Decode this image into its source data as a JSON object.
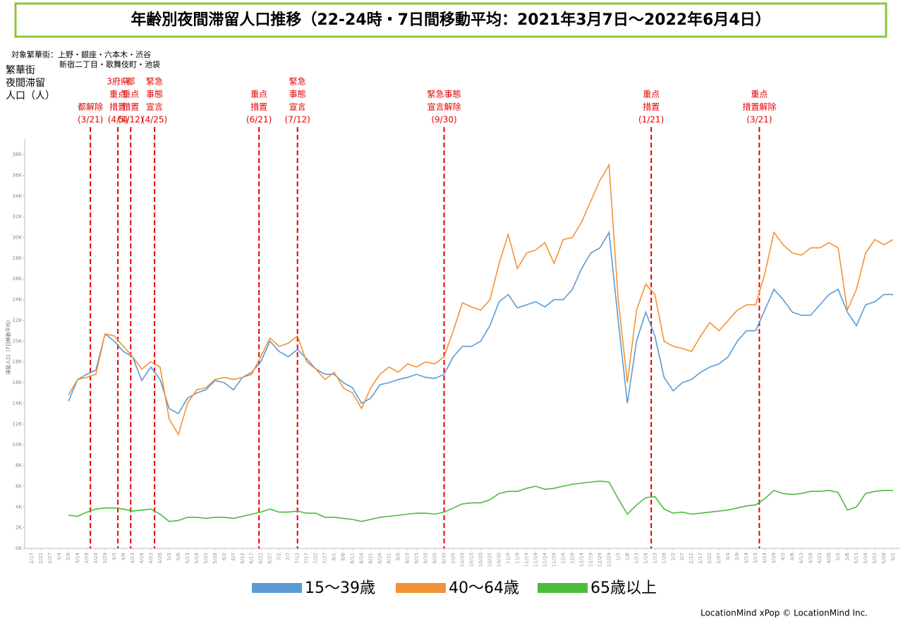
{
  "chart_data": {
    "type": "line",
    "title": "年齢別夜間滞留人口推移（22-24時・7日間移動平均：2021年3月7日～2022年6月4日）",
    "area_note": [
      "対象繁華街：上野・銀座・六本木・渋谷",
      "新宿二丁目・歌舞伎町・池袋"
    ],
    "y_unit_label": [
      "繁華街",
      "夜間滞留",
      "人口（人）"
    ],
    "ylabel": "滞留人口（7日移動平均）",
    "source": "LocationMind xPop © LocationMind Inc.",
    "categories": [
      "2/17",
      "2/22",
      "2/27",
      "3/4",
      "3/9",
      "3/14",
      "3/19",
      "3/24",
      "3/29",
      "4/3",
      "4/8",
      "4/13",
      "4/18",
      "4/23",
      "4/28",
      "5/3",
      "5/8",
      "5/13",
      "5/18",
      "5/23",
      "5/28",
      "6/2",
      "6/7",
      "6/12",
      "6/17",
      "6/22",
      "6/27",
      "7/2",
      "7/7",
      "7/12",
      "7/17",
      "7/22",
      "7/27",
      "8/1",
      "8/6",
      "8/11",
      "8/16",
      "8/21",
      "8/26",
      "8/31",
      "9/5",
      "9/10",
      "9/15",
      "9/20",
      "9/25",
      "9/30",
      "10/5",
      "10/10",
      "10/15",
      "10/20",
      "10/25",
      "10/30",
      "11/4",
      "11/9",
      "11/14",
      "11/19",
      "11/24",
      "11/29",
      "12/4",
      "12/9",
      "12/14",
      "12/19",
      "12/24",
      "12/29",
      "1/3",
      "1/8",
      "1/13",
      "1/18",
      "1/23",
      "1/28",
      "2/2",
      "2/7",
      "2/12",
      "2/17",
      "2/22",
      "2/27",
      "3/4",
      "3/9",
      "3/14",
      "3/19",
      "3/24",
      "3/29",
      "4/3",
      "4/8",
      "4/13",
      "4/18",
      "4/23",
      "4/28",
      "5/3",
      "5/8",
      "5/13",
      "5/18",
      "5/23",
      "5/28",
      "6/2"
    ],
    "series": [
      {
        "name": "15～39歳",
        "color": "#5a9bd5",
        "values": [
          null,
          null,
          null,
          null,
          14200,
          16300,
          16800,
          17200,
          20700,
          20000,
          19000,
          18500,
          16200,
          17500,
          16300,
          13500,
          13000,
          14500,
          15000,
          15300,
          16200,
          16000,
          15300,
          16500,
          17000,
          18000,
          20000,
          19000,
          18500,
          19200,
          18300,
          17300,
          16800,
          16800,
          16000,
          15500,
          14000,
          14500,
          15800,
          16000,
          16300,
          16500,
          16800,
          16500,
          16400,
          16800,
          18500,
          19500,
          19500,
          20000,
          21500,
          23800,
          24500,
          23200,
          23500,
          23800,
          23300,
          24000,
          24000,
          25000,
          27000,
          28500,
          29000,
          30500,
          22000,
          14000,
          20000,
          22800,
          20500,
          16500,
          15200,
          16000,
          16300,
          17000,
          17500,
          17800,
          18500,
          20000,
          21000,
          21000,
          23000,
          25000,
          24000,
          22800,
          22500,
          22500,
          23500,
          24500,
          25000,
          22800,
          21500,
          23500,
          23800,
          24500,
          24500
        ]
      },
      {
        "name": "40～64歳",
        "color": "#f39237",
        "values": [
          null,
          null,
          null,
          null,
          14800,
          16300,
          16500,
          16800,
          20700,
          20500,
          19500,
          18500,
          17300,
          18000,
          17500,
          12500,
          11000,
          14000,
          15300,
          15500,
          16300,
          16500,
          16300,
          16500,
          16800,
          18500,
          20300,
          19500,
          19800,
          20500,
          18000,
          17300,
          16300,
          17000,
          15500,
          15000,
          13500,
          15500,
          16800,
          17500,
          17000,
          17800,
          17500,
          18000,
          17800,
          18500,
          21000,
          23700,
          23300,
          23000,
          24000,
          27500,
          30300,
          27000,
          28500,
          28800,
          29500,
          27500,
          29800,
          30000,
          31500,
          33500,
          35500,
          37000,
          24000,
          16000,
          23000,
          25500,
          24500,
          20000,
          19500,
          19300,
          19000,
          20500,
          21800,
          21000,
          22000,
          23000,
          23500,
          23500,
          26500,
          30500,
          29300,
          28500,
          28300,
          29000,
          29000,
          29500,
          29000,
          23000,
          25000,
          28500,
          29800,
          29300,
          29800
        ]
      },
      {
        "name": "65歳以上",
        "color": "#4cbb3c",
        "values": [
          null,
          null,
          null,
          null,
          3200,
          3100,
          3500,
          3800,
          3900,
          3900,
          3800,
          3600,
          3700,
          3800,
          3300,
          2600,
          2700,
          3000,
          3000,
          2900,
          3000,
          3000,
          2900,
          3100,
          3300,
          3500,
          3800,
          3500,
          3500,
          3600,
          3400,
          3400,
          3000,
          3000,
          2900,
          2800,
          2600,
          2800,
          3000,
          3100,
          3200,
          3300,
          3400,
          3400,
          3300,
          3500,
          3900,
          4300,
          4400,
          4400,
          4700,
          5300,
          5500,
          5500,
          5800,
          6000,
          5700,
          5800,
          6000,
          6200,
          6300,
          6400,
          6500,
          6400,
          4800,
          3300,
          4200,
          4900,
          5000,
          3800,
          3400,
          3500,
          3300,
          3400,
          3500,
          3600,
          3700,
          3900,
          4100,
          4200,
          4800,
          5600,
          5300,
          5200,
          5300,
          5500,
          5500,
          5600,
          5400,
          3700,
          4000,
          5300,
          5500,
          5600,
          5600
        ]
      }
    ],
    "ylim": [
      0,
      39500
    ],
    "yticks": [
      {
        "value": 0,
        "label": "0K"
      },
      {
        "value": 2000,
        "label": "2K"
      },
      {
        "value": 4000,
        "label": "4K"
      },
      {
        "value": 6000,
        "label": "6K"
      },
      {
        "value": 8000,
        "label": "8K"
      },
      {
        "value": 10000,
        "label": "10K"
      },
      {
        "value": 12000,
        "label": "12K"
      },
      {
        "value": 14000,
        "label": "14K"
      },
      {
        "value": 16000,
        "label": "16K"
      },
      {
        "value": 18000,
        "label": "18K"
      },
      {
        "value": 20000,
        "label": "20K"
      },
      {
        "value": 22000,
        "label": "22K"
      },
      {
        "value": 24000,
        "label": "24K"
      },
      {
        "value": 26000,
        "label": "26K"
      },
      {
        "value": 28000,
        "label": "28K"
      },
      {
        "value": 30000,
        "label": "30K"
      },
      {
        "value": 32000,
        "label": "32K"
      },
      {
        "value": 34000,
        "label": "34K"
      },
      {
        "value": 36000,
        "label": "36K"
      },
      {
        "value": 38000,
        "label": "38K"
      }
    ],
    "grid": false,
    "annotation_color": "#e60000",
    "annotations": [
      {
        "lines": [
          "都解除"
        ],
        "date": "(3/21)"
      },
      {
        "lines": [
          "3府県",
          "重点",
          "措置"
        ],
        "date": "(4/5)"
      },
      {
        "lines": [
          "都",
          "重点",
          "措置"
        ],
        "date": "(4/12)"
      },
      {
        "lines": [
          "緊急",
          "事態",
          "宣言"
        ],
        "date": "(4/25)"
      },
      {
        "lines": [
          "重点",
          "措置"
        ],
        "date": "(6/21)"
      },
      {
        "lines": [
          "緊急",
          "事態",
          "宣言"
        ],
        "date": "(7/12)"
      },
      {
        "lines": [
          "緊急事態",
          "宣言解除"
        ],
        "date": "(9/30)"
      },
      {
        "lines": [
          "重点",
          "措置"
        ],
        "date": "(1/21)"
      },
      {
        "lines": [
          "重点",
          "措置解除"
        ],
        "date": "(3/21)"
      }
    ]
  }
}
